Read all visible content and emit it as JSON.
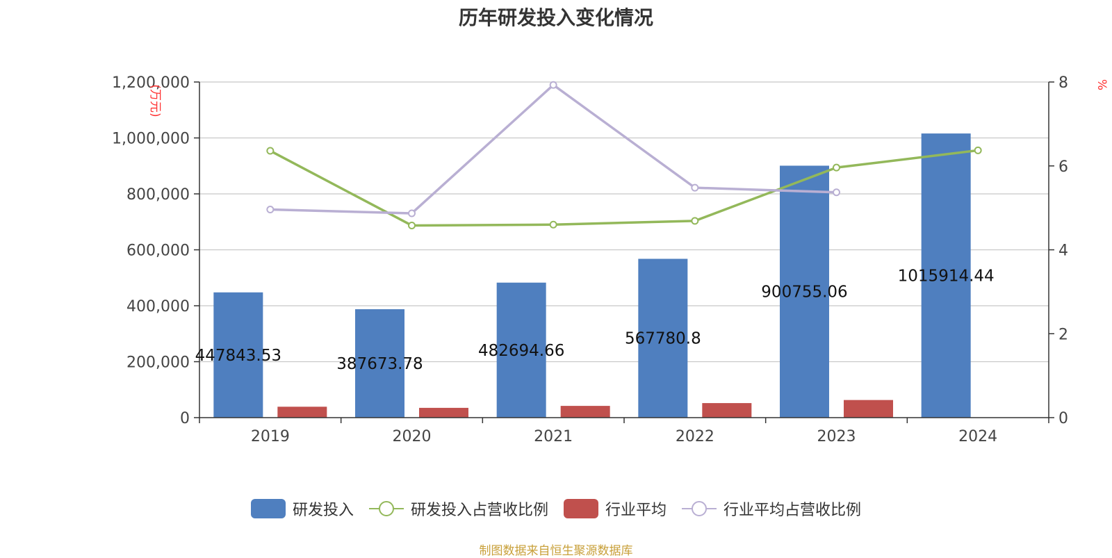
{
  "title": "历年研发投入变化情况",
  "source": "制图数据来自恒生聚源数据库",
  "chart_data": {
    "type": "bar",
    "categories": [
      "2019",
      "2020",
      "2021",
      "2022",
      "2023",
      "2024"
    ],
    "left_axis": {
      "unit": "(万元)",
      "ylim": [
        0,
        1200000
      ],
      "ticks": [
        "0",
        "200,000",
        "400,000",
        "600,000",
        "800,000",
        "1,000,000",
        "1,200,000"
      ]
    },
    "right_axis": {
      "unit": "%",
      "ylim": [
        0,
        8
      ],
      "ticks": [
        "0",
        "2",
        "4",
        "6",
        "8"
      ]
    },
    "grid": true,
    "legend_position": "bottom",
    "series": [
      {
        "name": "研发投入",
        "type": "bar",
        "axis": "left",
        "color": "#4f7fbf",
        "values": [
          447843.53,
          387673.78,
          482694.66,
          567780.8,
          900755.06,
          1015914.44
        ],
        "labels": [
          "447843.53",
          "387673.78",
          "482694.66",
          "567780.8",
          "900755.06",
          "1015914.44"
        ]
      },
      {
        "name": "研发投入占营收比例",
        "type": "line",
        "axis": "right",
        "color": "#93b85a",
        "values": [
          6.36,
          4.58,
          4.6,
          4.69,
          5.96,
          6.37
        ]
      },
      {
        "name": "行业平均",
        "type": "bar",
        "axis": "left",
        "color": "#c0504d",
        "values": [
          39000,
          35000,
          42000,
          52000,
          63000,
          null
        ]
      },
      {
        "name": "行业平均占营收比例",
        "type": "line",
        "axis": "right",
        "color": "#b9afd3",
        "values": [
          4.96,
          4.87,
          7.93,
          5.48,
          5.37,
          null
        ]
      }
    ]
  }
}
